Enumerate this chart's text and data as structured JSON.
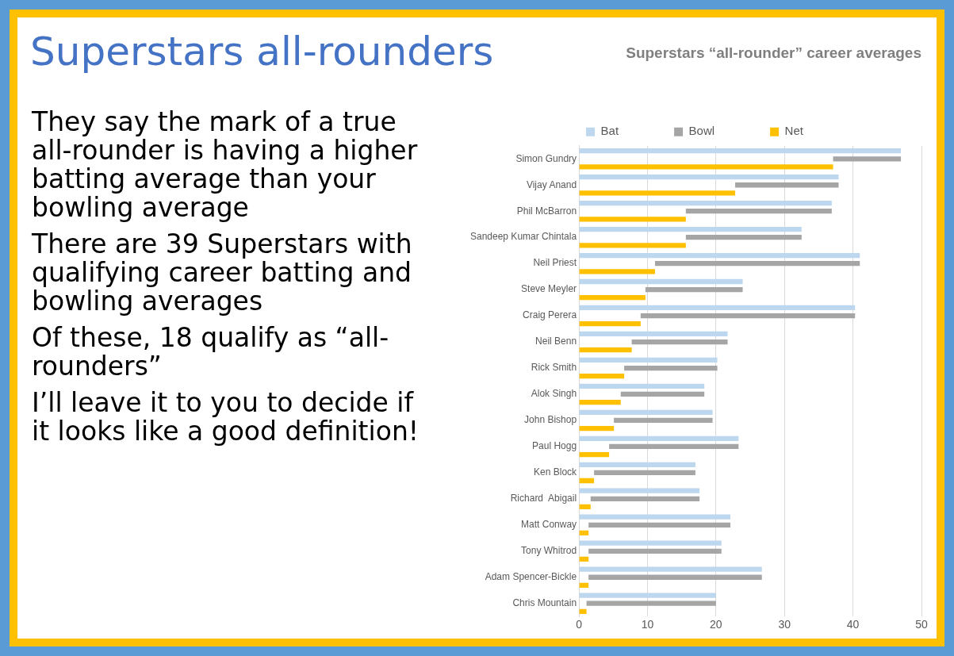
{
  "chart_data": {
    "type": "bar",
    "orientation": "horizontal",
    "title": "Superstars all-rounders",
    "subtitle": "Superstars “all-rounder” career averages",
    "annotations": [
      "They say the mark of a true all-rounder is having a higher batting average than your bowling average",
      "There are 39 Superstars with qualifying career batting and bowling averages",
      "Of these, 18 qualify as “all-rounders”",
      "I’ll leave it to you to decide if it looks like a good definition!"
    ],
    "categories": [
      "Simon Gundry",
      "Vijay Anand",
      "Phil McBarron",
      "Sandeep Kumar Chintala",
      "Neil Priest",
      "Steve Meyler",
      "Craig Perera",
      "Neil Benn",
      "Rick Smith",
      "Alok Singh",
      "John Bishop",
      "Paul Hogg",
      "Ken Block",
      "Richard  Abigail",
      "Matt Conway",
      "Tony Whitrod",
      "Adam Spencer-Bickle",
      "Chris Mountain"
    ],
    "series": [
      {
        "name": "Bat",
        "color": "#bdd7ee",
        "values": [
          47.0,
          37.9,
          36.9,
          32.5,
          41.0,
          23.9,
          40.3,
          21.7,
          20.2,
          18.3,
          19.5,
          23.3,
          17.0,
          17.6,
          22.1,
          20.8,
          26.7,
          20.0
        ]
      },
      {
        "name": "Bowl",
        "color": "#a5a5a5",
        "values": [
          9.9,
          15.1,
          21.3,
          16.9,
          29.9,
          14.2,
          31.3,
          14.0,
          13.6,
          12.2,
          14.4,
          18.9,
          14.8,
          15.9,
          20.7,
          19.4,
          25.3,
          18.9
        ],
        "base": [
          37.1,
          22.8,
          15.6,
          15.6,
          11.1,
          9.7,
          9.0,
          7.7,
          6.6,
          6.1,
          5.1,
          4.4,
          2.2,
          1.7,
          1.4,
          1.4,
          1.4,
          1.1
        ]
      },
      {
        "name": "Net",
        "color": "#ffc000",
        "values": [
          37.1,
          22.8,
          15.6,
          15.6,
          11.1,
          9.7,
          9.0,
          7.7,
          6.6,
          6.1,
          5.1,
          4.4,
          2.2,
          1.7,
          1.4,
          1.4,
          1.4,
          1.1
        ]
      }
    ],
    "xlim": [
      0,
      50
    ],
    "xticks": [
      0,
      10,
      20,
      30,
      40,
      50
    ],
    "grid": "x",
    "legend": "top"
  }
}
